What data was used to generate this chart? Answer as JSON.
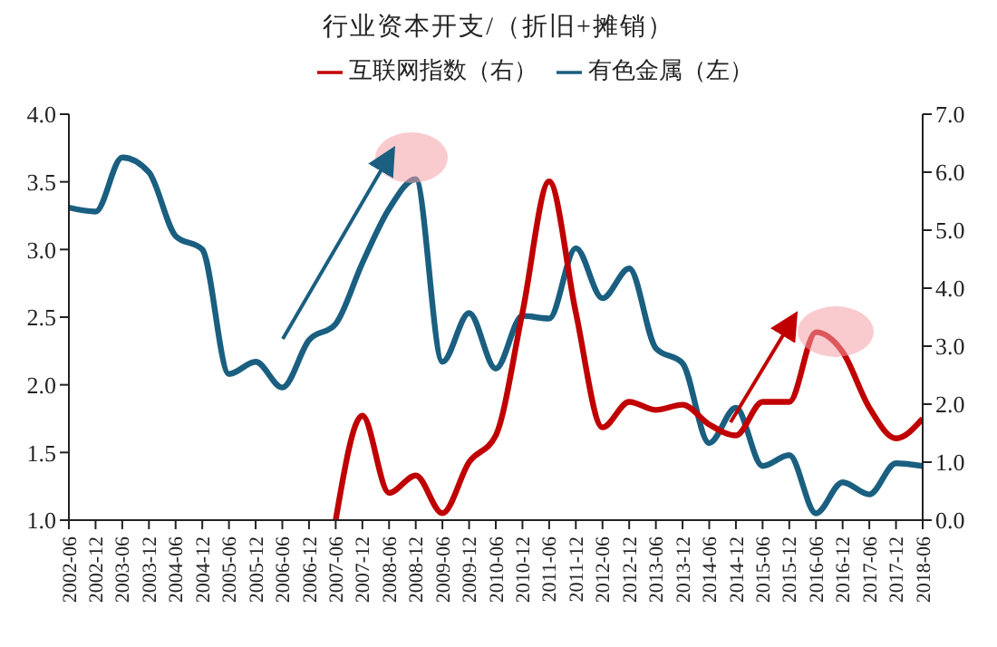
{
  "chart_data": {
    "type": "line",
    "title": "行业资本开支/（折旧+摊销）",
    "categories": [
      "2002-06",
      "2002-12",
      "2003-06",
      "2003-12",
      "2004-06",
      "2004-12",
      "2005-06",
      "2005-12",
      "2006-06",
      "2006-12",
      "2007-06",
      "2007-12",
      "2008-06",
      "2008-12",
      "2009-06",
      "2009-12",
      "2010-06",
      "2010-12",
      "2011-06",
      "2011-12",
      "2012-06",
      "2012-12",
      "2013-06",
      "2013-12",
      "2014-06",
      "2014-12",
      "2015-06",
      "2015-12",
      "2016-06",
      "2016-12",
      "2017-06",
      "2017-12",
      "2018-06"
    ],
    "series": [
      {
        "name": "有色金属（左）",
        "color": "#1a5f80",
        "values": [
          3.31,
          3.28,
          3.68,
          3.57,
          3.1,
          3.0,
          2.08,
          2.17,
          1.98,
          2.33,
          2.45,
          2.9,
          3.3,
          3.52,
          2.17,
          2.53,
          2.12,
          2.51,
          2.49,
          3.01,
          2.64,
          2.86,
          2.27,
          2.16,
          1.57,
          1.83,
          1.4,
          1.48,
          1.05,
          1.28,
          1.19,
          1.42,
          1.4
        ]
      },
      {
        "name": "互联网指数（右）",
        "color": "#c00000",
        "axis": "y2",
        "values": [
          null,
          null,
          null,
          null,
          null,
          null,
          null,
          null,
          null,
          null,
          0,
          1.8,
          0.47,
          0.77,
          0.12,
          1.0,
          1.46,
          3.58,
          5.84,
          3.58,
          1.6,
          2.04,
          1.9,
          1.99,
          1.65,
          1.46,
          2.04,
          2.04,
          3.24,
          2.9,
          1.94,
          1.41,
          1.75
        ]
      }
    ],
    "ylim": [
      1,
      4
    ],
    "yticks": [
      {
        "value": 1,
        "label": "1.0"
      },
      {
        "value": 1.5,
        "label": "1.5"
      },
      {
        "value": 2,
        "label": "2.0"
      },
      {
        "value": 2.5,
        "label": "2.5"
      },
      {
        "value": 3,
        "label": "3.0"
      },
      {
        "value": 3.5,
        "label": "3.5"
      },
      {
        "value": 4,
        "label": "4.0"
      }
    ],
    "y2lim": [
      0,
      7
    ],
    "y2ticks": [
      {
        "value": 0,
        "label": "0.0"
      },
      {
        "value": 1,
        "label": "1.0"
      },
      {
        "value": 2,
        "label": "2.0"
      },
      {
        "value": 3,
        "label": "3.0"
      },
      {
        "value": 4,
        "label": "4.0"
      },
      {
        "value": 5,
        "label": "5.0"
      },
      {
        "value": 6,
        "label": "6.0"
      },
      {
        "value": 7,
        "label": "7.0"
      }
    ],
    "legend": "top",
    "grid": false,
    "marker": "none",
    "line_style": "solid"
  }
}
